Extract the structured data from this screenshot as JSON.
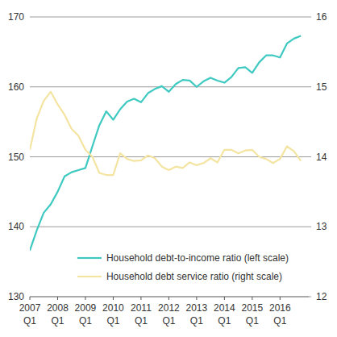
{
  "chart_data": {
    "type": "line",
    "categories": [
      "2007 Q1",
      null,
      null,
      null,
      "2008 Q1",
      null,
      null,
      null,
      "2009 Q1",
      null,
      null,
      null,
      "2010 Q1",
      null,
      null,
      null,
      "2011 Q1",
      null,
      null,
      null,
      "2012 Q1",
      null,
      null,
      null,
      "2013 Q1",
      null,
      null,
      null,
      "2014 Q1",
      null,
      null,
      null,
      "2015 Q1",
      null,
      null,
      null,
      "2016 Q1",
      null,
      null,
      null
    ],
    "series": [
      {
        "name": "Household debt-to-income ratio (left scale)",
        "color": "#3ec9c1",
        "values": [
          136.6,
          139.5,
          142.0,
          143.2,
          145.0,
          147.2,
          147.8,
          148.1,
          148.4,
          151.5,
          154.5,
          156.5,
          155.3,
          156.8,
          157.9,
          158.3,
          157.8,
          159.1,
          159.7,
          160.1,
          159.3,
          160.4,
          161.0,
          160.9,
          160.0,
          160.8,
          161.3,
          160.9,
          160.6,
          161.4,
          162.7,
          162.8,
          162.0,
          163.5,
          164.5,
          164.5,
          164.2,
          166.2,
          166.9,
          167.3
        ]
      },
      {
        "name": "Household debt service ratio (right scale)",
        "color": "#f4e4a1",
        "axis": "y2",
        "values": [
          14.1,
          14.55,
          14.8,
          14.93,
          14.75,
          14.6,
          14.4,
          14.3,
          14.1,
          14.0,
          13.77,
          13.74,
          13.74,
          14.05,
          13.97,
          13.94,
          13.95,
          14.02,
          13.98,
          13.86,
          13.81,
          13.86,
          13.84,
          13.92,
          13.88,
          13.91,
          13.98,
          13.92,
          14.1,
          14.1,
          14.05,
          14.09,
          14.1,
          14.0,
          13.97,
          13.91,
          13.97,
          14.15,
          14.08,
          13.94
        ]
      }
    ],
    "ylim": [
      130,
      170
    ],
    "yticks": [
      130,
      140,
      150,
      160,
      170
    ],
    "y2lim": [
      12,
      16
    ],
    "y2ticks": [
      12,
      13,
      14,
      15,
      16
    ],
    "grid": true,
    "legend": "lower right"
  }
}
